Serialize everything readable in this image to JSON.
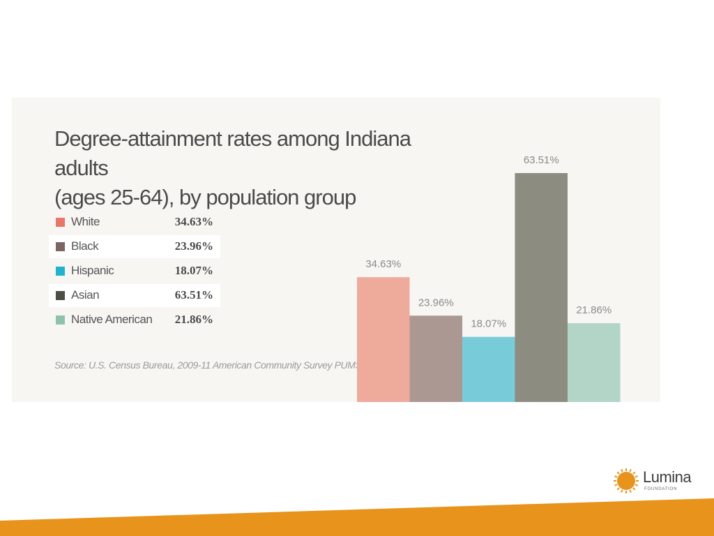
{
  "title_lines": [
    "Degree-attainment rates among Indiana adults",
    "(ages 25-64), by population group"
  ],
  "source": "Source: U.S. Census Bureau, 2009-11 American Community Survey PUMS File",
  "logo": {
    "name": "Lumina",
    "tagline": "FOUNDATION"
  },
  "legend": [
    {
      "label": "White",
      "value": "34.63%",
      "color": "#e8766a"
    },
    {
      "label": "Black",
      "value": "23.96%",
      "color": "#7d6566"
    },
    {
      "label": "Hispanic",
      "value": "18.07%",
      "color": "#21b3cc"
    },
    {
      "label": "Asian",
      "value": "63.51%",
      "color": "#4d4f47"
    },
    {
      "label": "Native American",
      "value": "21.86%",
      "color": "#8fc2ad"
    }
  ],
  "colors": {
    "accent_orange": "#e8931c",
    "panel_background": "#f7f6f3"
  },
  "chart_data": {
    "type": "bar",
    "categories": [
      "White",
      "Black",
      "Hispanic",
      "Asian",
      "Native American"
    ],
    "values": [
      34.63,
      23.96,
      18.07,
      63.51,
      21.86
    ],
    "data_labels": [
      "34.63%",
      "23.96%",
      "18.07%",
      "63.51%",
      "21.86%"
    ],
    "bar_colors": [
      "#eeaa9b",
      "#ab9893",
      "#78ccd9",
      "#8c8c80",
      "#b2d5c8"
    ],
    "ylim": [
      0,
      63.51
    ],
    "grid": false,
    "axes_visible": false,
    "legend": "left"
  }
}
